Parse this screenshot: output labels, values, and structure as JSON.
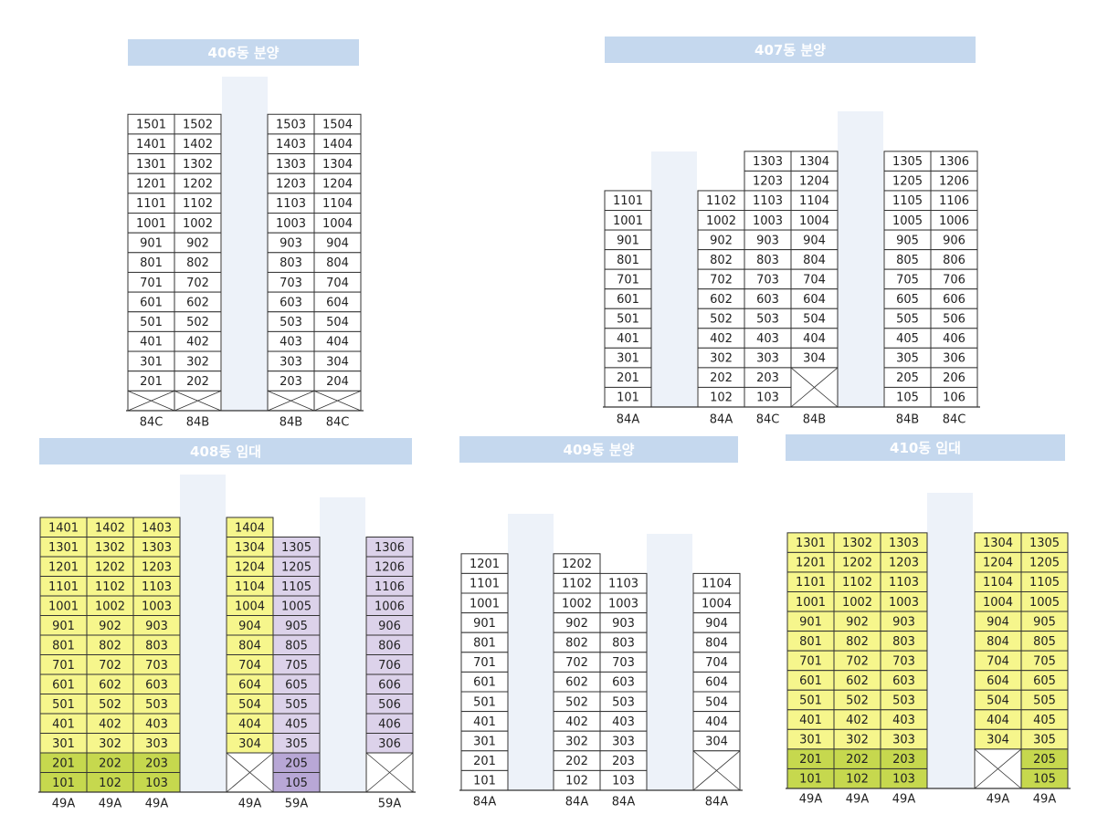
{
  "buildings": [
    {
      "title": "406동 분양",
      "columns": [
        {
          "type": "84C",
          "groups": [
            {
              "color": "#ffffff",
              "units": [
                1501,
                1401,
                1301,
                1201,
                1101,
                1001,
                901,
                801,
                701,
                601,
                501,
                401,
                301,
                201,
                null
              ]
            }
          ]
        },
        {
          "type": "84B",
          "groups": [
            {
              "color": "#ffffff",
              "units": [
                1502,
                1402,
                1302,
                1202,
                1102,
                1002,
                902,
                802,
                702,
                602,
                502,
                402,
                302,
                202,
                null
              ]
            }
          ]
        },
        {
          "type": "84B",
          "groups": [
            {
              "color": "#ffffff",
              "units": [
                1503,
                1403,
                1303,
                1203,
                1103,
                1003,
                903,
                803,
                703,
                603,
                503,
                403,
                303,
                203,
                null
              ]
            }
          ]
        },
        {
          "type": "84C",
          "groups": [
            {
              "color": "#ffffff",
              "units": [
                1504,
                1404,
                1304,
                1204,
                1104,
                1004,
                904,
                804,
                704,
                604,
                504,
                404,
                304,
                204,
                null
              ]
            }
          ]
        }
      ]
    },
    {
      "title": "407동 분양",
      "columns": [
        {
          "type": "84A",
          "groups": [
            {
              "color": "#ffffff",
              "units": [
                1101,
                1001,
                901,
                801,
                701,
                601,
                501,
                401,
                301,
                201,
                101
              ]
            }
          ]
        },
        {
          "type": "84A",
          "groups": [
            {
              "color": "#ffffff",
              "units": [
                1102,
                1002,
                902,
                802,
                702,
                602,
                502,
                402,
                302,
                202,
                102
              ]
            }
          ]
        },
        {
          "type": "84C",
          "groups": [
            {
              "color": "#ffffff",
              "units": [
                1303,
                1203,
                1103,
                1003,
                903,
                803,
                703,
                603,
                503,
                403,
                303,
                203,
                103
              ]
            }
          ]
        },
        {
          "type": "84B",
          "groups": [
            {
              "color": "#ffffff",
              "units": [
                1304,
                1204,
                1104,
                1004,
                904,
                804,
                704,
                604,
                504,
                404,
                304,
                null,
                null
              ]
            }
          ]
        },
        {
          "type": "84B",
          "groups": [
            {
              "color": "#ffffff",
              "units": [
                1305,
                1205,
                1105,
                1005,
                905,
                805,
                705,
                605,
                505,
                405,
                305,
                205,
                105
              ]
            }
          ]
        },
        {
          "type": "84C",
          "groups": [
            {
              "color": "#ffffff",
              "units": [
                1306,
                1206,
                1106,
                1006,
                906,
                806,
                706,
                606,
                506,
                406,
                306,
                206,
                106
              ]
            }
          ]
        }
      ]
    },
    {
      "title": "408동 임대",
      "columns": [
        {
          "type": "49A",
          "groups": [
            {
              "color": "#f6f68c",
              "units": [
                1401,
                1301,
                1201,
                1101,
                1001,
                901,
                801,
                701,
                601,
                501,
                401,
                301
              ]
            },
            {
              "color": "#c6d84e",
              "units": [
                201,
                101
              ]
            }
          ]
        },
        {
          "type": "49A",
          "groups": [
            {
              "color": "#f6f68c",
              "units": [
                1402,
                1302,
                1202,
                1102,
                1002,
                902,
                802,
                702,
                602,
                502,
                402,
                302
              ]
            },
            {
              "color": "#c6d84e",
              "units": [
                202,
                102
              ]
            }
          ]
        },
        {
          "type": "49A",
          "groups": [
            {
              "color": "#f6f68c",
              "units": [
                1403,
                1303,
                1203,
                1103,
                1003,
                903,
                803,
                703,
                603,
                503,
                403,
                303
              ]
            },
            {
              "color": "#c6d84e",
              "units": [
                203,
                103
              ]
            }
          ]
        },
        {
          "type": "49A",
          "groups": [
            {
              "color": "#f6f68c",
              "units": [
                1404,
                1304,
                1204,
                1104,
                1004,
                904,
                804,
                704,
                604,
                504,
                404,
                304
              ]
            },
            {
              "color": "#ffffff",
              "units": [
                null,
                null
              ]
            }
          ]
        },
        {
          "type": "59A",
          "groups": [
            {
              "color": "#dcd2ea",
              "units": [
                1305,
                1205,
                1105,
                1005,
                905,
                805,
                705,
                605,
                505,
                405,
                305
              ]
            },
            {
              "color": "#b8a7d6",
              "units": [
                205,
                105
              ]
            }
          ]
        },
        {
          "type": "59A",
          "groups": [
            {
              "color": "#dcd2ea",
              "units": [
                1306,
                1206,
                1106,
                1006,
                906,
                806,
                706,
                606,
                506,
                406,
                306
              ]
            },
            {
              "color": "#ffffff",
              "units": [
                null,
                null
              ]
            }
          ]
        }
      ]
    },
    {
      "title": "409동 분양",
      "columns": [
        {
          "type": "84A",
          "groups": [
            {
              "color": "#ffffff",
              "units": [
                1201,
                1101,
                1001,
                901,
                801,
                701,
                601,
                501,
                401,
                301,
                201,
                101
              ]
            }
          ]
        },
        {
          "type": "84A",
          "groups": [
            {
              "color": "#ffffff",
              "units": [
                1202,
                1102,
                1002,
                902,
                802,
                702,
                602,
                502,
                402,
                302,
                202,
                102
              ]
            }
          ]
        },
        {
          "type": "84A",
          "groups": [
            {
              "color": "#ffffff",
              "units": [
                1103,
                1003,
                903,
                803,
                703,
                603,
                503,
                403,
                303,
                203,
                103
              ]
            }
          ]
        },
        {
          "type": "84A",
          "groups": [
            {
              "color": "#ffffff",
              "units": [
                1104,
                1004,
                904,
                804,
                704,
                604,
                504,
                404,
                304,
                null,
                null
              ]
            }
          ]
        }
      ]
    },
    {
      "title": "410동 임대",
      "columns": [
        {
          "type": "49A",
          "groups": [
            {
              "color": "#f6f68c",
              "units": [
                1301,
                1201,
                1101,
                1001,
                901,
                801,
                701,
                601,
                501,
                401,
                301
              ]
            },
            {
              "color": "#c6d84e",
              "units": [
                201,
                101
              ]
            }
          ]
        },
        {
          "type": "49A",
          "groups": [
            {
              "color": "#f6f68c",
              "units": [
                1302,
                1202,
                1102,
                1002,
                902,
                802,
                702,
                602,
                502,
                402,
                302
              ]
            },
            {
              "color": "#c6d84e",
              "units": [
                202,
                102
              ]
            }
          ]
        },
        {
          "type": "49A",
          "groups": [
            {
              "color": "#f6f68c",
              "units": [
                1303,
                1203,
                1103,
                1003,
                903,
                803,
                703,
                603,
                503,
                403,
                303
              ]
            },
            {
              "color": "#c6d84e",
              "units": [
                203,
                103
              ]
            }
          ]
        },
        {
          "type": "49A",
          "groups": [
            {
              "color": "#f6f68c",
              "units": [
                1304,
                1204,
                1104,
                1004,
                904,
                804,
                704,
                604,
                504,
                404,
                304
              ]
            },
            {
              "color": "#ffffff",
              "units": [
                null,
                null
              ]
            }
          ]
        },
        {
          "type": "49A",
          "groups": [
            {
              "color": "#f6f68c",
              "units": [
                1305,
                1205,
                1105,
                1005,
                905,
                805,
                705,
                605,
                505,
                405,
                305
              ]
            },
            {
              "color": "#c6d84e",
              "units": [
                205,
                105
              ]
            }
          ]
        }
      ]
    }
  ]
}
